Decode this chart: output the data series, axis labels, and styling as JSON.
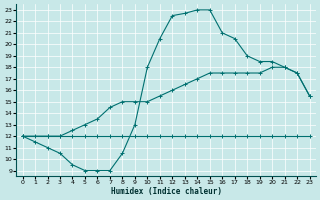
{
  "xlabel": "Humidex (Indice chaleur)",
  "bg_color": "#c8e8e8",
  "line_color": "#007070",
  "xlim": [
    -0.5,
    23.5
  ],
  "ylim": [
    8.5,
    23.5
  ],
  "xticks": [
    0,
    1,
    2,
    3,
    4,
    5,
    6,
    7,
    8,
    9,
    10,
    11,
    12,
    13,
    14,
    15,
    16,
    17,
    18,
    19,
    20,
    21,
    22,
    23
  ],
  "yticks": [
    9,
    10,
    11,
    12,
    13,
    14,
    15,
    16,
    17,
    18,
    19,
    20,
    21,
    22,
    23
  ],
  "line1_x": [
    0,
    1,
    2,
    3,
    4,
    5,
    6,
    7,
    8,
    9,
    10,
    11,
    12,
    13,
    14,
    15,
    16,
    17,
    18,
    19,
    20,
    21,
    22,
    23
  ],
  "line1_y": [
    12,
    12,
    12,
    12,
    12,
    12,
    12,
    12,
    12,
    12,
    12,
    12,
    12,
    12,
    12,
    12,
    12,
    12,
    12,
    12,
    12,
    12,
    12,
    12
  ],
  "line2_x": [
    0,
    2,
    3,
    4,
    5,
    6,
    7,
    8,
    9,
    10,
    11,
    12,
    13,
    14,
    15,
    16,
    17,
    18,
    19,
    20,
    21,
    22,
    23
  ],
  "line2_y": [
    12,
    12,
    12,
    12.5,
    13,
    13.5,
    14.5,
    15,
    15,
    15,
    15.5,
    16,
    16.5,
    17,
    17.5,
    17.5,
    17.5,
    17.5,
    17.5,
    18,
    18,
    17.5,
    15.5
  ],
  "line3_x": [
    0,
    1,
    2,
    3,
    4,
    5,
    6,
    7,
    8,
    9,
    10,
    11,
    12,
    13,
    14,
    15,
    16,
    17,
    18,
    19,
    20,
    21,
    22,
    23
  ],
  "line3_y": [
    12,
    11.5,
    11,
    10.5,
    9.5,
    9.0,
    9.0,
    9.0,
    10.5,
    13,
    18,
    20.5,
    22.5,
    22.7,
    23,
    23,
    21,
    20.5,
    19,
    18.5,
    18.5,
    18,
    17.5,
    15.5
  ]
}
